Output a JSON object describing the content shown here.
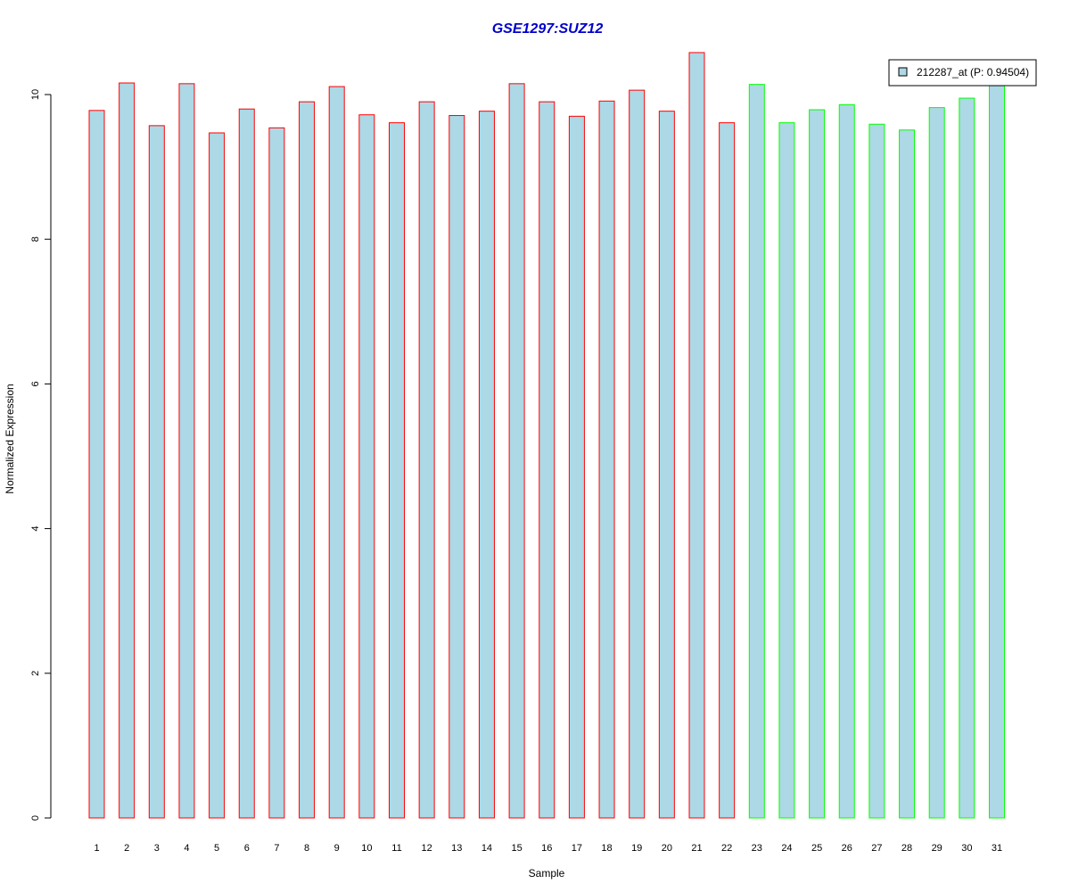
{
  "chart_data": {
    "type": "bar",
    "title": "GSE1297:SUZ12",
    "xlabel": "Sample",
    "ylabel": "Normalized Expression",
    "ylim": [
      0,
      10.6
    ],
    "yticks": [
      0,
      2,
      4,
      6,
      8,
      10
    ],
    "grid": false,
    "legend_position": "top-right",
    "categories": [
      "1",
      "2",
      "3",
      "4",
      "5",
      "6",
      "7",
      "8",
      "9",
      "10",
      "11",
      "12",
      "13",
      "14",
      "15",
      "16",
      "17",
      "18",
      "19",
      "20",
      "21",
      "22",
      "23",
      "24",
      "25",
      "26",
      "27",
      "28",
      "29",
      "30",
      "31"
    ],
    "series": [
      {
        "name": "212287_at (P: 0.94504)",
        "values": [
          9.78,
          10.16,
          9.57,
          10.15,
          9.47,
          9.8,
          9.54,
          9.9,
          10.11,
          9.72,
          9.61,
          9.9,
          9.71,
          9.77,
          10.15,
          9.9,
          9.7,
          9.91,
          10.06,
          9.77,
          10.58,
          9.61,
          10.14,
          9.61,
          9.79,
          9.86,
          9.59,
          9.51,
          9.82,
          9.95,
          10.18
        ]
      }
    ],
    "groups": [
      {
        "samples": "1-22",
        "border_color": "#ff0000"
      },
      {
        "samples": "23-31",
        "border_color": "#00ff00"
      }
    ],
    "group_split_after_index": 22,
    "colors": {
      "bar_fill": "#add8e6",
      "title": "#0000cd",
      "group1_border": "#ff0000",
      "group2_border": "#00ff00"
    }
  }
}
